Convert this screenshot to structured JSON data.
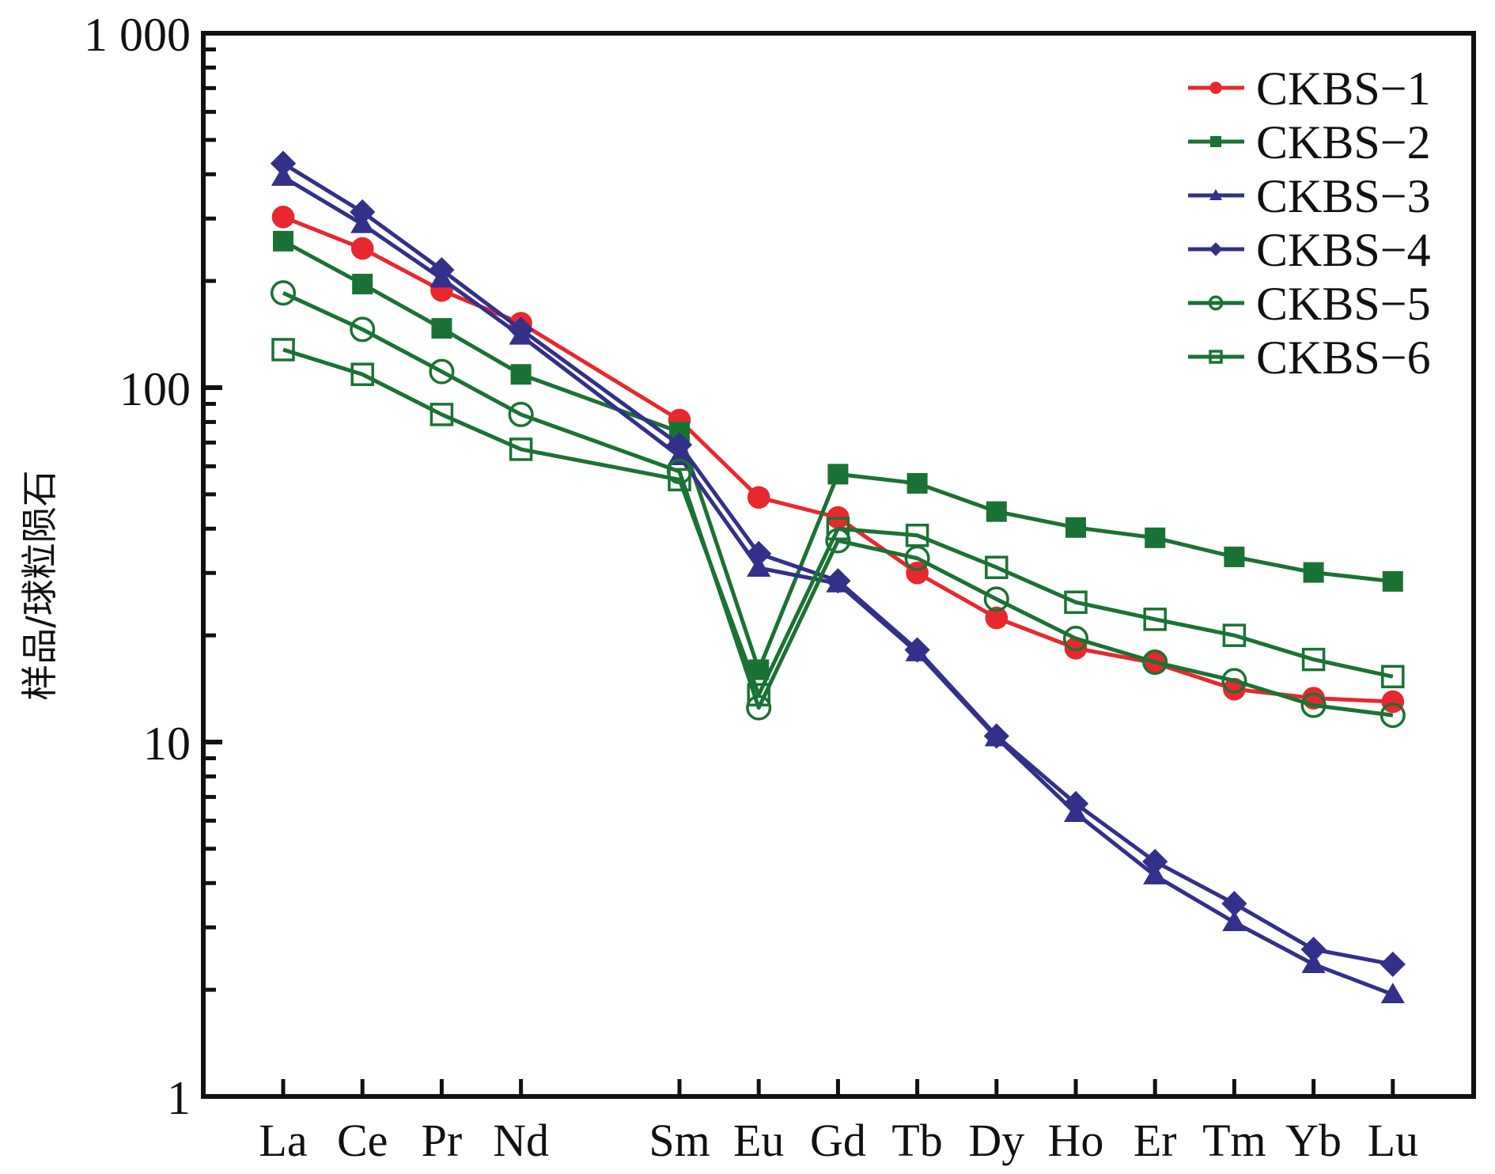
{
  "chart_data": {
    "type": "line",
    "title": "",
    "xlabel": "",
    "ylabel": "样品/球粒陨石",
    "yscale": "log",
    "ylim": [
      1,
      1000
    ],
    "yticks": [
      1,
      10,
      100,
      1000
    ],
    "ytick_labels": [
      "1",
      "10",
      "100",
      "1 000"
    ],
    "grid": false,
    "legend_position": "top-right",
    "categories": [
      "La",
      "Ce",
      "Pr",
      "Nd",
      "Sm",
      "Eu",
      "Gd",
      "Tb",
      "Dy",
      "Ho",
      "Er",
      "Tm",
      "Yb",
      "Lu"
    ],
    "category_slots": [
      0,
      1,
      2,
      3,
      5,
      6,
      7,
      8,
      9,
      10,
      11,
      12,
      13,
      14
    ],
    "series": [
      {
        "name": "CKBS-1",
        "color": "#e8282e",
        "marker": "circle-filled",
        "values": [
          303,
          247,
          188,
          152,
          81,
          49,
          43,
          30,
          22.4,
          18.4,
          16.7,
          14.1,
          13.3,
          13.0
        ]
      },
      {
        "name": "CKBS-2",
        "color": "#1a7234",
        "marker": "square-filled",
        "values": [
          259,
          196,
          147,
          109,
          75,
          16,
          57,
          53.7,
          44.7,
          40.3,
          37.7,
          33.3,
          30.1,
          28.4
        ]
      },
      {
        "name": "CKBS-3",
        "color": "#33308a",
        "marker": "triangle-filled",
        "values": [
          393,
          289,
          203,
          140,
          64,
          31,
          28,
          17.9,
          10.3,
          6.3,
          4.2,
          3.1,
          2.36,
          1.94
        ]
      },
      {
        "name": "CKBS-4",
        "color": "#33308a",
        "marker": "diamond-filled",
        "values": [
          429,
          313,
          215,
          146,
          69,
          34,
          28.5,
          18.2,
          10.4,
          6.7,
          4.6,
          3.5,
          2.6,
          2.36
        ]
      },
      {
        "name": "CKBS-5",
        "color": "#1a7234",
        "marker": "circle-open",
        "values": [
          185,
          146,
          111,
          84,
          58,
          12.5,
          37,
          33,
          25.3,
          19.6,
          16.8,
          14.9,
          12.7,
          11.9
        ]
      },
      {
        "name": "CKBS-6",
        "color": "#1a7234",
        "marker": "square-open",
        "values": [
          128,
          109,
          84,
          67,
          55,
          13.6,
          40,
          38.3,
          31.1,
          24.8,
          22.2,
          20,
          17.1,
          15.3
        ]
      }
    ]
  }
}
